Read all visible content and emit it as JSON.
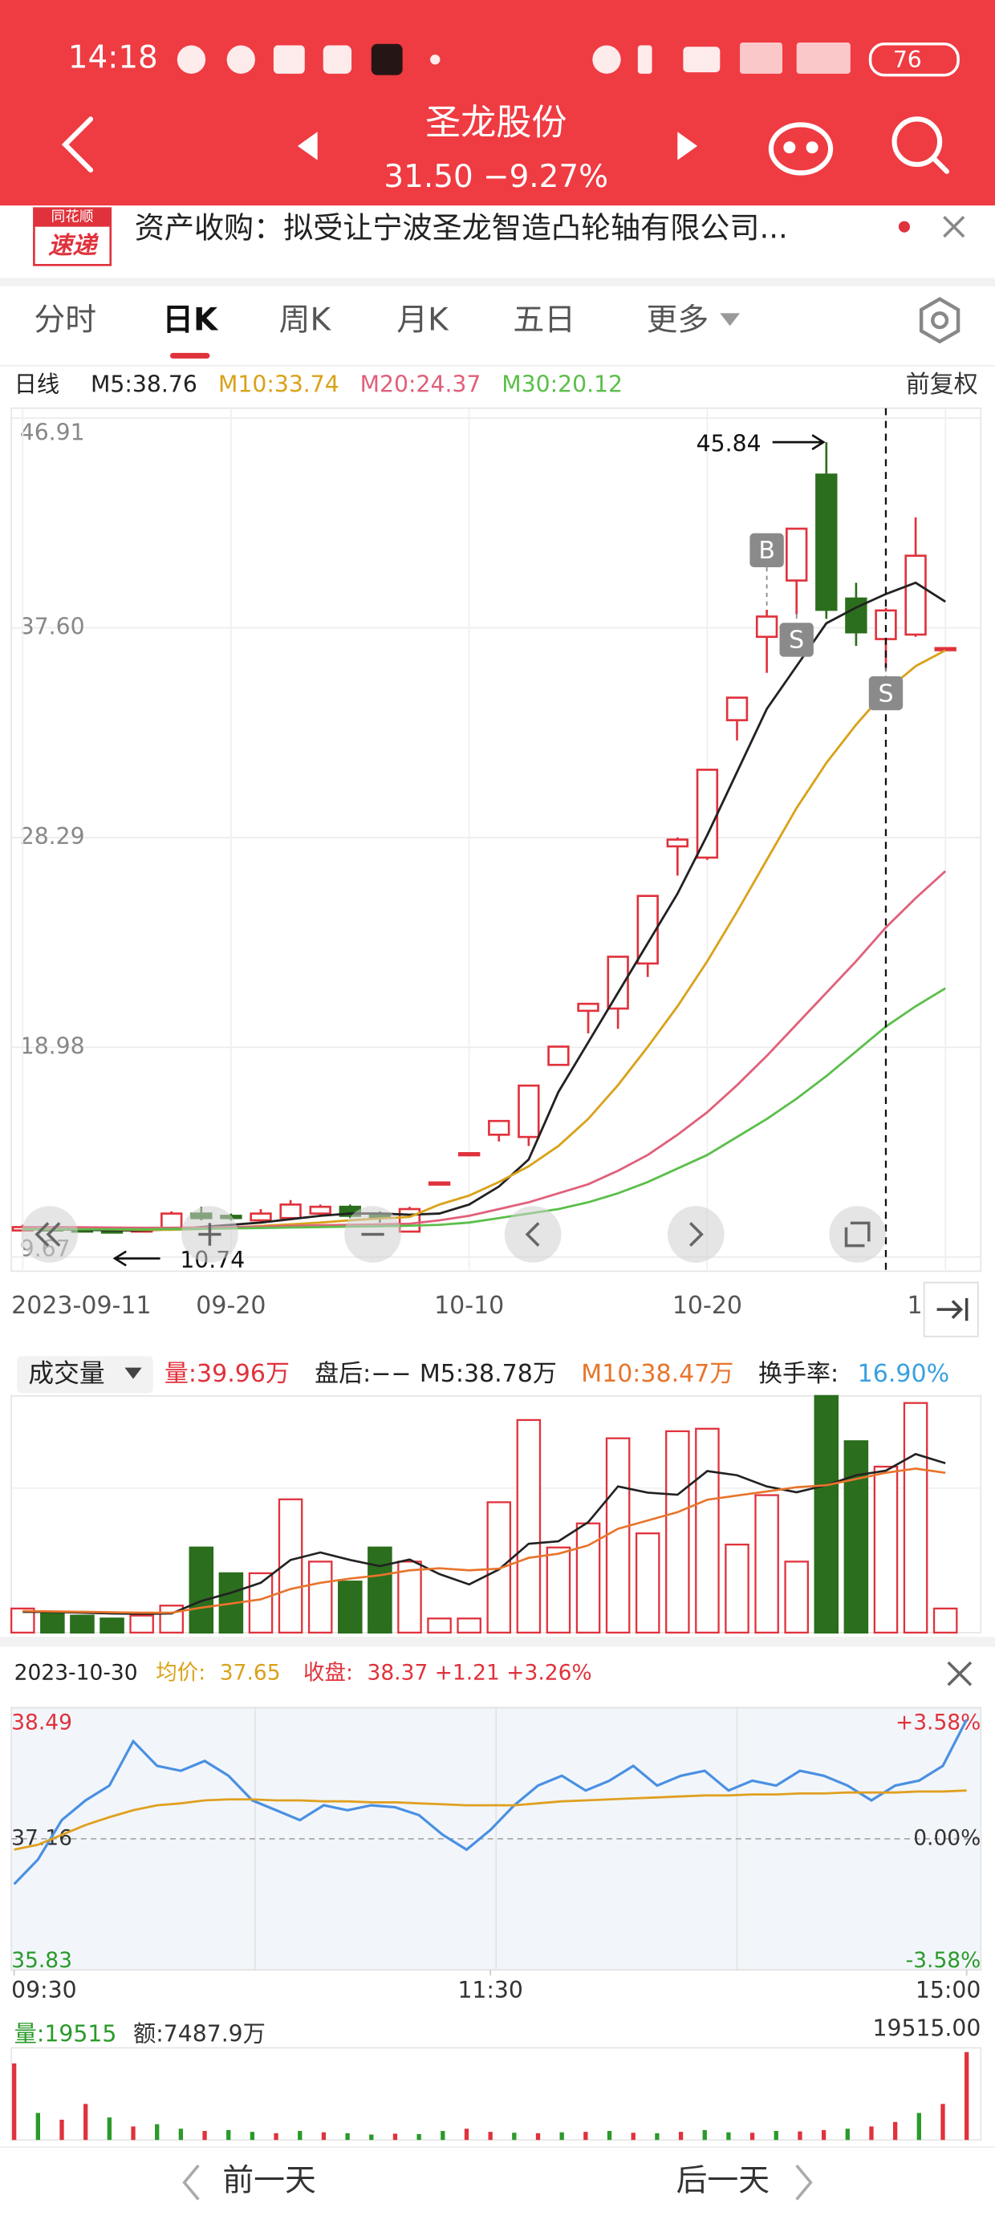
{
  "status": {
    "time": "14:18",
    "battery": "76"
  },
  "header": {
    "title": "圣龙股份",
    "quote": "31.50 −9.27%"
  },
  "news": {
    "logo_top": "同花顺",
    "logo_bottom": "速递",
    "text": "资产收购：拟受让宁波圣龙智造凸轮轴有限公司..."
  },
  "tabs": {
    "items": [
      "分时",
      "日K",
      "周K",
      "月K",
      "五日",
      "更多"
    ],
    "active": 1
  },
  "kline": {
    "type": "candlestick",
    "legend_label": "日线",
    "legend": [
      "M5:38.76",
      "M10:33.74",
      "M20:24.37",
      "M30:20.12"
    ],
    "adjust": "前复权",
    "ylim": [
      9.67,
      46.91
    ],
    "yticks": [
      46.91,
      {
        "value": 37.6,
        "label": "37.60"
      },
      28.29,
      18.98,
      9.67
    ],
    "categories": [
      "2023-09-11",
      null,
      null,
      null,
      null,
      null,
      null,
      "09-20",
      null,
      null,
      null,
      null,
      null,
      null,
      null,
      "10-10",
      null,
      null,
      null,
      null,
      null,
      null,
      null,
      "10-20",
      null,
      null,
      null,
      null,
      null,
      null,
      null,
      "1"
    ],
    "selected": 29,
    "open": [
      10.85,
      11.0,
      10.9,
      10.85,
      10.8,
      10.9,
      11.6,
      11.5,
      11.3,
      11.4,
      11.6,
      11.9,
      11.6,
      10.8,
      12.98,
      14.28,
      15.1,
      15.0,
      18.2,
      20.6,
      20.7,
      22.7,
      27.9,
      27.4,
      33.5,
      37.2,
      39.7,
      44.4,
      38.9,
      37.1,
      37.3,
      36.7
    ],
    "high": [
      11.1,
      11.05,
      10.95,
      10.9,
      10.95,
      11.7,
      11.9,
      11.6,
      11.8,
      12.2,
      12.0,
      12.0,
      11.7,
      11.9,
      12.98,
      14.28,
      15.71,
      17.28,
      19.01,
      20.91,
      23.0,
      25.7,
      28.3,
      31.3,
      34.5,
      38.4,
      42.0,
      45.84,
      39.6,
      38.49,
      42.5,
      36.7
    ],
    "low": [
      10.8,
      10.8,
      10.78,
      10.74,
      10.76,
      10.85,
      11.3,
      11.3,
      11.2,
      11.3,
      11.5,
      11.4,
      11.2,
      10.8,
      12.98,
      14.28,
      14.8,
      14.6,
      18.2,
      19.6,
      19.8,
      22.1,
      26.6,
      27.3,
      32.6,
      35.6,
      38.2,
      38.0,
      36.8,
      35.83,
      37.2,
      36.7
    ],
    "close": [
      11.0,
      10.85,
      10.8,
      10.8,
      10.9,
      11.6,
      11.4,
      11.4,
      11.6,
      12.0,
      11.9,
      11.5,
      11.4,
      11.8,
      12.98,
      14.28,
      15.71,
      17.28,
      19.01,
      20.91,
      23.0,
      25.7,
      28.2,
      31.3,
      34.5,
      38.1,
      42.0,
      38.4,
      37.4,
      38.37,
      40.8,
      36.7
    ],
    "series": [
      {
        "name": "M5",
        "color": "#222222",
        "values": [
          10.9,
          10.9,
          10.88,
          10.86,
          10.85,
          10.9,
          11.0,
          11.1,
          11.2,
          11.35,
          11.5,
          11.6,
          11.6,
          11.55,
          11.6,
          12.0,
          12.8,
          14.0,
          17.0,
          19.2,
          21.4,
          23.6,
          25.8,
          28.4,
          31.2,
          34.0,
          35.9,
          37.8,
          38.5,
          39.1,
          39.6,
          38.76
        ]
      },
      {
        "name": "M10",
        "color": "#d9a21a",
        "values": [
          10.95,
          10.94,
          10.92,
          10.9,
          10.88,
          10.88,
          10.92,
          10.98,
          11.05,
          11.12,
          11.2,
          11.3,
          11.38,
          11.45,
          12.0,
          12.4,
          13.0,
          13.7,
          14.6,
          15.8,
          17.3,
          19.0,
          20.8,
          22.8,
          25.0,
          27.3,
          29.6,
          31.6,
          33.3,
          34.8,
          35.9,
          36.6
        ]
      },
      {
        "name": "M20",
        "color": "#e0607a",
        "values": [
          11.0,
          11.0,
          10.99,
          10.98,
          10.97,
          10.97,
          10.98,
          11.0,
          11.02,
          11.05,
          11.08,
          11.1,
          11.12,
          11.15,
          11.3,
          11.5,
          11.8,
          12.1,
          12.5,
          12.9,
          13.5,
          14.2,
          15.1,
          16.1,
          17.3,
          18.6,
          20.0,
          21.4,
          22.8,
          24.3,
          25.6,
          26.8
        ]
      },
      {
        "name": "M30",
        "color": "#5bbf4a",
        "values": [
          10.9,
          10.9,
          10.9,
          10.9,
          10.9,
          10.91,
          10.92,
          10.94,
          10.96,
          10.98,
          11.0,
          11.02,
          11.04,
          11.06,
          11.1,
          11.2,
          11.4,
          11.6,
          11.8,
          12.1,
          12.5,
          13.0,
          13.6,
          14.2,
          15.0,
          15.8,
          16.7,
          17.7,
          18.8,
          19.9,
          20.8,
          21.6
        ]
      }
    ],
    "high_mark": {
      "label": "45.84",
      "value": 45.84,
      "category": 27
    },
    "low_mark": {
      "label": "10.74",
      "value": 10.74,
      "category": 3
    },
    "signals": [
      {
        "text": "B",
        "category": 25,
        "side": "above"
      },
      {
        "text": "S",
        "category": 26,
        "side": "below"
      },
      {
        "text": "S",
        "category": 29,
        "side": "below"
      }
    ]
  },
  "volume": {
    "type": "bar",
    "title": "成交量",
    "stats": [
      {
        "text": "量:39.96万",
        "color": "#e0323c"
      },
      {
        "text": "盘后:−−",
        "color": "#222222"
      },
      {
        "text": "M5:38.78万",
        "color": "#222222"
      },
      {
        "text": "M10:38.47万",
        "color": "#e8742c"
      },
      {
        "text": "换手率:",
        "color": "#222222"
      },
      {
        "text": "16.90%",
        "color": "#3aa0e0"
      }
    ],
    "ylim": [
      0,
      57
    ],
    "values": [
      5.8,
      4.8,
      4.1,
      3.4,
      4.1,
      6.5,
      20.5,
      14.3,
      14.3,
      32.1,
      17.1,
      12.3,
      20.5,
      17.1,
      3.4,
      3.4,
      31.4,
      51.2,
      20.5,
      26.3,
      46.8,
      23.9,
      48.5,
      49.1,
      21.2,
      33.1,
      17.1,
      57.0,
      46.1,
      39.96,
      55.3,
      5.8
    ],
    "series": [
      {
        "name": "M5",
        "color": "#222222",
        "values": [
          5.0,
          5.0,
          4.8,
          4.6,
          4.5,
          4.6,
          7.6,
          9.6,
          12.0,
          17.5,
          19.3,
          17.5,
          16.0,
          17.6,
          14.1,
          11.6,
          15.2,
          21.4,
          22.0,
          26.6,
          35.2,
          33.7,
          33.2,
          38.9,
          37.9,
          35.2,
          33.8,
          35.5,
          37.9,
          39.0,
          43.0,
          40.8
        ]
      },
      {
        "name": "M10",
        "color": "#e8742c",
        "values": [
          5.2,
          5.1,
          5.0,
          4.9,
          4.8,
          4.8,
          6.0,
          7.0,
          8.0,
          10.5,
          12.0,
          13.0,
          13.8,
          15.0,
          15.5,
          15.0,
          15.4,
          18.0,
          19.0,
          21.0,
          25.0,
          27.0,
          29.0,
          32.0,
          33.0,
          34.0,
          35.0,
          35.5,
          37.0,
          38.5,
          39.5,
          38.5
        ]
      }
    ]
  },
  "intraday": {
    "type": "line",
    "date": "2023-10-30",
    "avg_label": "均价:",
    "avg": "37.65",
    "close_label": "收盘:",
    "close": "38.37 +1.21 +3.26%",
    "ylim": [
      35.83,
      38.49
    ],
    "yticks": [
      38.49,
      37.16,
      35.83
    ],
    "pct_labels": [
      "+3.58%",
      "0.00%",
      "-3.58%"
    ],
    "xlim": [
      0,
      240
    ],
    "xticks": [
      {
        "value": 0,
        "label": "09:30"
      },
      {
        "value": 120,
        "label": "11:30"
      },
      {
        "value": 240,
        "label": "15:00"
      }
    ],
    "x": [
      0,
      6,
      12,
      18,
      24,
      30,
      36,
      42,
      48,
      54,
      60,
      66,
      72,
      78,
      84,
      90,
      96,
      102,
      108,
      114,
      120,
      126,
      132,
      138,
      144,
      150,
      156,
      162,
      168,
      174,
      180,
      186,
      192,
      198,
      204,
      210,
      216,
      222,
      228,
      234,
      240
    ],
    "series": [
      {
        "name": "价格",
        "color": "#4a90e2",
        "values": [
          36.7,
          36.95,
          37.35,
          37.55,
          37.7,
          38.15,
          37.9,
          37.85,
          37.95,
          37.8,
          37.55,
          37.45,
          37.35,
          37.5,
          37.45,
          37.5,
          37.48,
          37.4,
          37.2,
          37.05,
          37.25,
          37.5,
          37.7,
          37.8,
          37.65,
          37.75,
          37.9,
          37.7,
          37.8,
          37.85,
          37.65,
          37.75,
          37.7,
          37.85,
          37.8,
          37.7,
          37.55,
          37.7,
          37.75,
          37.9,
          38.37
        ]
      },
      {
        "name": "均价",
        "color": "#e0a020",
        "values": [
          37.05,
          37.1,
          37.2,
          37.3,
          37.38,
          37.45,
          37.5,
          37.52,
          37.55,
          37.56,
          37.56,
          37.55,
          37.55,
          37.54,
          37.54,
          37.53,
          37.53,
          37.52,
          37.51,
          37.5,
          37.5,
          37.5,
          37.52,
          37.54,
          37.55,
          37.56,
          37.57,
          37.58,
          37.59,
          37.6,
          37.6,
          37.61,
          37.61,
          37.62,
          37.62,
          37.63,
          37.63,
          37.63,
          37.64,
          37.64,
          37.65
        ]
      }
    ],
    "volume_label": "量:19515",
    "amount_label": "额:7487.9万",
    "volume_max_label": "19515.00",
    "vlim": [
      0,
      19515
    ],
    "volume": [
      17000,
      6000,
      4500,
      8000,
      5000,
      3000,
      3500,
      2500,
      2000,
      2200,
      1800,
      1500,
      2000,
      1700,
      1500,
      1200,
      1400,
      1300,
      2000,
      2500,
      1800,
      1600,
      1500,
      1700,
      1800,
      2000,
      1600,
      1500,
      1800,
      2200,
      1700,
      1600,
      2000,
      1900,
      2200,
      2500,
      3000,
      4000,
      6000,
      8000,
      19515
    ],
    "volume_up": [
      true,
      false,
      true,
      true,
      false,
      true,
      false,
      false,
      true,
      false,
      false,
      true,
      false,
      true,
      false,
      false,
      true,
      false,
      false,
      true,
      true,
      false,
      true,
      false,
      true,
      false,
      true,
      false,
      true,
      false,
      false,
      true,
      false,
      true,
      true,
      false,
      true,
      true,
      false,
      true,
      true
    ]
  },
  "footer": {
    "prev": "前一天",
    "next": "后一天"
  }
}
